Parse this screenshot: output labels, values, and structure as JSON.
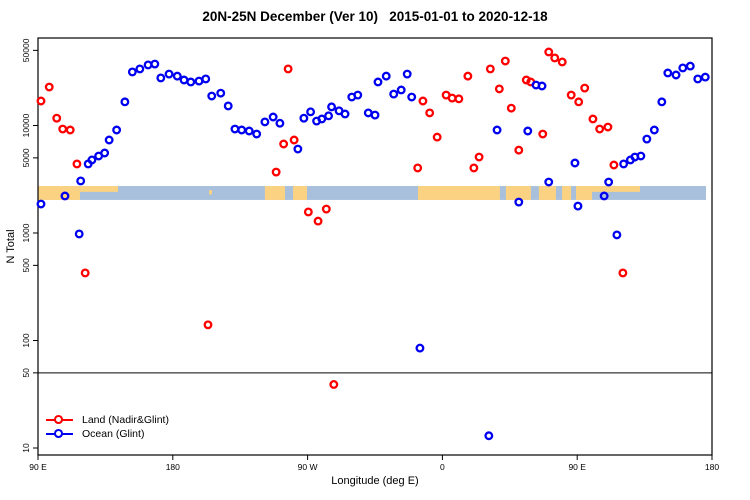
{
  "chart_data": {
    "type": "scatter",
    "title": "20N-25N December (Ver 10)   2015-01-01 to 2020-12-18",
    "xlabel": "Longitude (deg E)",
    "ylabel": "N Total",
    "x_axis": {
      "range_deg_from_90E": [
        0,
        450
      ],
      "tick_positions_deg": [
        0,
        90,
        180,
        270,
        360,
        450
      ],
      "tick_labels": [
        "90 E",
        "180",
        "90 W",
        "0",
        "90 E",
        "180"
      ]
    },
    "y_axis": {
      "scale": "log10",
      "range": [
        8.6,
        65000
      ],
      "ticks": [
        10,
        50,
        100,
        500,
        1000,
        5000,
        10000,
        50000
      ],
      "tick_labels": [
        "10",
        "50",
        "100",
        "500",
        "1000",
        "5000",
        "10000",
        "50000"
      ]
    },
    "reference_line_y": 50,
    "reference_line_color": "#666666",
    "series": [
      {
        "name": "Land (Nadir&Glint)",
        "color": "#FF0000",
        "points": [
          [
            7.5,
            22800
          ],
          [
            2,
            16900
          ],
          [
            12.5,
            11700
          ],
          [
            16.5,
            9270
          ],
          [
            21.5,
            9080
          ],
          [
            26,
            4390
          ],
          [
            31.5,
            425
          ],
          [
            113.5,
            140
          ],
          [
            167,
            33600
          ],
          [
            164,
            6730
          ],
          [
            171,
            7330
          ],
          [
            159,
            3690
          ],
          [
            180.5,
            1570
          ],
          [
            187,
            1290
          ],
          [
            192.5,
            1670
          ],
          [
            197.5,
            39
          ],
          [
            257,
            16900
          ],
          [
            272.5,
            19200
          ],
          [
            276.5,
            18000
          ],
          [
            281,
            17700
          ],
          [
            261.5,
            13100
          ],
          [
            266.5,
            7800
          ],
          [
            253.5,
            4030
          ],
          [
            287,
            28800
          ],
          [
            302,
            33600
          ],
          [
            312,
            39800
          ],
          [
            308,
            21900
          ],
          [
            316,
            14500
          ],
          [
            326,
            26500
          ],
          [
            329,
            25400
          ],
          [
            294.5,
            5090
          ],
          [
            321,
            5900
          ],
          [
            291,
            4030
          ],
          [
            337,
            8330
          ],
          [
            341,
            48300
          ],
          [
            345,
            42500
          ],
          [
            350,
            39000
          ],
          [
            356,
            19200
          ],
          [
            361,
            16600
          ],
          [
            365,
            22300
          ],
          [
            370.5,
            11500
          ],
          [
            375,
            9270
          ],
          [
            380.5,
            9680
          ],
          [
            384.5,
            4290
          ],
          [
            390.5,
            425
          ]
        ]
      },
      {
        "name": "Ocean (Glint)",
        "color": "#0000F0",
        "points": [
          [
            2,
            1860
          ],
          [
            18,
            2210
          ],
          [
            28.5,
            3050
          ],
          [
            27.5,
            980
          ],
          [
            33.5,
            4390
          ],
          [
            36,
            4780
          ],
          [
            40.5,
            5200
          ],
          [
            44.5,
            5550
          ],
          [
            47.5,
            7330
          ],
          [
            52.5,
            9080
          ],
          [
            58,
            16600
          ],
          [
            63,
            31500
          ],
          [
            68,
            33600
          ],
          [
            73.5,
            36600
          ],
          [
            78,
            37300
          ],
          [
            82,
            27700
          ],
          [
            87.5,
            30100
          ],
          [
            93,
            28800
          ],
          [
            97.5,
            26500
          ],
          [
            102,
            25400
          ],
          [
            107.5,
            25900
          ],
          [
            112,
            27100
          ],
          [
            116,
            18800
          ],
          [
            122,
            20000
          ],
          [
            127,
            15200
          ],
          [
            131.5,
            9270
          ],
          [
            136,
            9080
          ],
          [
            141,
            8890
          ],
          [
            146,
            8330
          ],
          [
            151.5,
            10800
          ],
          [
            157,
            12000
          ],
          [
            161.5,
            10500
          ],
          [
            173.5,
            6040
          ],
          [
            177.5,
            11700
          ],
          [
            182,
            13400
          ],
          [
            186,
            11000
          ],
          [
            189.5,
            11500
          ],
          [
            194,
            12300
          ],
          [
            196,
            14900
          ],
          [
            201,
            13700
          ],
          [
            205,
            12800
          ],
          [
            209.5,
            18400
          ],
          [
            213.5,
            19200
          ],
          [
            220.5,
            13100
          ],
          [
            225,
            12500
          ],
          [
            227,
            25400
          ],
          [
            232.5,
            28800
          ],
          [
            237.5,
            19600
          ],
          [
            242.5,
            21400
          ],
          [
            246.5,
            30100
          ],
          [
            249.5,
            18400
          ],
          [
            255,
            85
          ],
          [
            301,
            13
          ],
          [
            306.5,
            9080
          ],
          [
            321,
            1940
          ],
          [
            327,
            8890
          ],
          [
            332.5,
            23800
          ],
          [
            336.5,
            23300
          ],
          [
            341,
            2980
          ],
          [
            358.5,
            4480
          ],
          [
            360.5,
            1780
          ],
          [
            378,
            2210
          ],
          [
            381,
            2980
          ],
          [
            386.5,
            960
          ],
          [
            391,
            4390
          ],
          [
            395.5,
            4780
          ],
          [
            398.5,
            5090
          ],
          [
            402.5,
            5200
          ],
          [
            406.5,
            7480
          ],
          [
            411.5,
            9080
          ],
          [
            416.5,
            16600
          ],
          [
            420.5,
            30800
          ],
          [
            426,
            29500
          ],
          [
            430.5,
            34300
          ],
          [
            435.5,
            35700
          ],
          [
            440.5,
            27100
          ],
          [
            445.5,
            28200
          ]
        ]
      }
    ],
    "map_strip": {
      "description": "20N-25N latitude world map band",
      "n_top": 2735,
      "n_bottom": 2030,
      "ocean_color": "#A8C0DC",
      "land_color": "#FBD282",
      "ocean_extent_deg": [
        0,
        446
      ],
      "land_segments_deg": [
        [
          0,
          28
        ],
        [
          151.5,
          164.9
        ],
        [
          170.3,
          179.6
        ],
        [
          253.7,
          308.4
        ],
        [
          312.4,
          329.1
        ],
        [
          334.4,
          345.8
        ],
        [
          349.9,
          355.9
        ],
        [
          359.2,
          369.9
        ]
      ],
      "land_top_segments_deg": [
        [
          28,
          53.4
        ],
        [
          369.9,
          401.9
        ]
      ],
      "island_dots_deg": [
        [
          114.2,
          116.2
        ]
      ]
    },
    "legend_position": "bottom-left"
  }
}
